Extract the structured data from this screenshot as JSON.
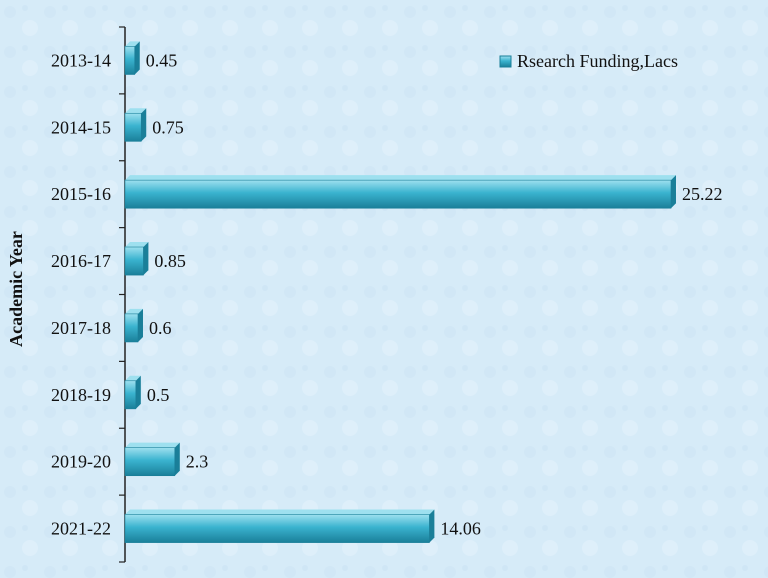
{
  "chart_data": {
    "type": "bar",
    "orientation": "horizontal",
    "categories": [
      "2013-14",
      "2014-15",
      "2015-16",
      "2016-17",
      "2017-18",
      "2018-19",
      "2019-20",
      "2021-22"
    ],
    "series": [
      {
        "name": "Rsearch Funding,Lacs",
        "values": [
          0.45,
          0.75,
          25.22,
          0.85,
          0.6,
          0.5,
          2.3,
          14.06
        ]
      }
    ],
    "data_labels": [
      "0.45",
      "0.75",
      "25.22",
      "0.85",
      "0.6",
      "0.5",
      "2.3",
      "14.06"
    ],
    "title": "",
    "xlabel": "",
    "ylabel": "Academic Year",
    "xlim": [
      0,
      28.5
    ],
    "grid": false,
    "legend_position": "top-right",
    "colors": {
      "bar": "#3ab3cf",
      "bar_light": "#9ee0ef",
      "bar_dark": "#1a7f99",
      "axis": "#222222"
    }
  }
}
